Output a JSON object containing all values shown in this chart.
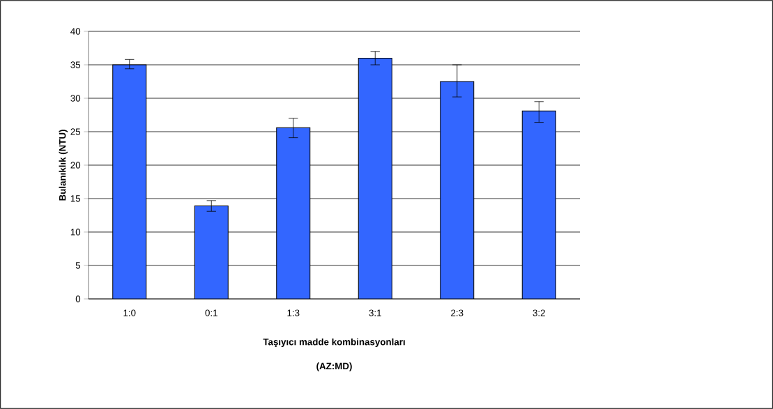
{
  "chart_data": {
    "type": "bar",
    "ylabel": "Bulanıklık (NTU)",
    "xlabel": "Taşıyıcı madde kombinasyonları (AZ:MD)",
    "categories": [
      "1:0",
      "0:1",
      "1:3",
      "3:1",
      "2:3",
      "3:2"
    ],
    "values": [
      35,
      13.9,
      25.6,
      36.0,
      32.5,
      28.1
    ],
    "errors": [
      [
        34.4,
        35.8
      ],
      [
        13.1,
        14.7
      ],
      [
        24.1,
        27.0
      ],
      [
        35.0,
        37.0
      ],
      [
        30.2,
        35.0
      ],
      [
        26.4,
        29.5
      ]
    ],
    "color": "#3366ff",
    "ylim": [
      0,
      40
    ],
    "yticks": [
      0,
      5,
      10,
      15,
      20,
      25,
      30,
      35,
      40
    ],
    "grid": "y"
  }
}
